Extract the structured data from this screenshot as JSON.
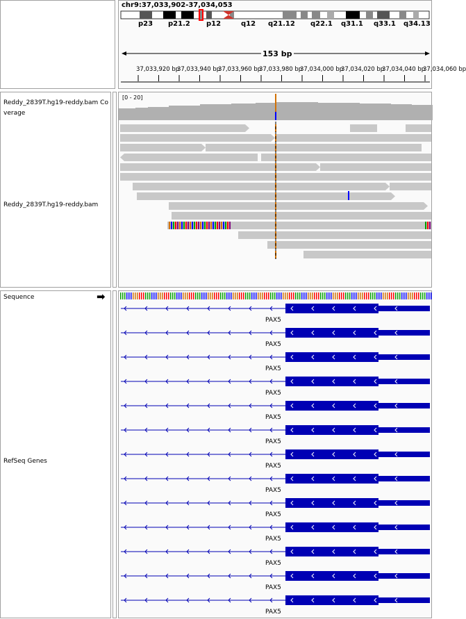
{
  "header": {
    "locus": "chr9:37,033,902-37,034,053",
    "cytobands": [
      "p23",
      "p21.2",
      "p12",
      "q12",
      "q21.12",
      "q22.1",
      "q31.1",
      "q33.1",
      "q34.13"
    ],
    "span_label": "153 bp",
    "ruler_ticks": [
      "37,033,920 bp",
      "37,033,940 bp",
      "37,033,960 bp",
      "37,033,980 bp",
      "37,034,000 bp",
      "37,034,020 bp",
      "37,034,040 bp",
      "37,034,060 bp"
    ]
  },
  "tracks": {
    "coverage_label": "Reddy_2839T.hg19-reddy.bam Coverage",
    "coverage_range": "[0 - 20]",
    "alignment_label": "Reddy_2839T.hg19-reddy.bam",
    "sequence_label": "Sequence",
    "sequence_strand_icon": "arrow-right-icon",
    "refseq_label": "RefSeq Genes",
    "gene_name": "PAX5"
  },
  "colors": {
    "gene_blue": "#0000b4",
    "read_gray": "#c8c8c8",
    "coverage_gray": "#b0b0b0",
    "mismatch_orange": "#d17105",
    "mismatch_blue": "#0000ff"
  }
}
